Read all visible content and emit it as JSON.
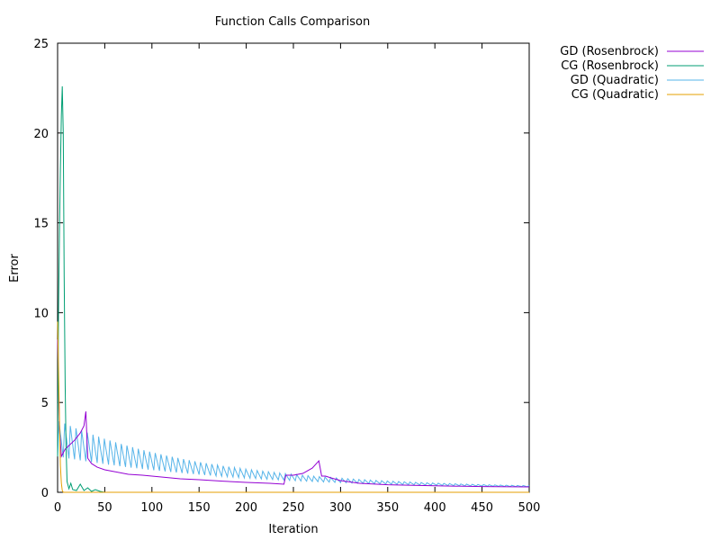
{
  "chart_data": {
    "type": "line",
    "title": "Function Calls Comparison",
    "xlabel": "Iteration",
    "ylabel": "Error",
    "xlim": [
      0,
      500
    ],
    "ylim": [
      0,
      25
    ],
    "xticks": [
      0,
      50,
      100,
      150,
      200,
      250,
      300,
      350,
      400,
      450,
      500
    ],
    "yticks": [
      0,
      5,
      10,
      15,
      20,
      25
    ],
    "grid": false,
    "legend_position": "outside-top-right",
    "series": [
      {
        "name": "GD (Rosenbrock)",
        "color": "#9400d3",
        "x": [
          0,
          2,
          4,
          8,
          12,
          18,
          24,
          28,
          30,
          32,
          36,
          42,
          50,
          60,
          75,
          90,
          110,
          130,
          150,
          175,
          200,
          225,
          240,
          242,
          250,
          260,
          270,
          277,
          280,
          284,
          290,
          300,
          320,
          350,
          400,
          450,
          500
        ],
        "y": [
          8.5,
          3.5,
          2.0,
          2.4,
          2.6,
          2.9,
          3.3,
          3.7,
          4.5,
          1.9,
          1.6,
          1.4,
          1.25,
          1.15,
          1.0,
          0.95,
          0.85,
          0.75,
          0.7,
          0.62,
          0.55,
          0.5,
          0.45,
          0.95,
          0.95,
          1.05,
          1.35,
          1.75,
          0.9,
          0.9,
          0.8,
          0.65,
          0.5,
          0.42,
          0.36,
          0.32,
          0.3
        ]
      },
      {
        "name": "CG (Rosenbrock)",
        "color": "#009e73",
        "x": [
          0,
          1,
          2,
          3,
          4,
          5,
          6,
          7,
          8,
          9,
          10,
          12,
          14,
          16,
          20,
          24,
          28,
          32,
          36,
          40,
          45,
          50,
          500
        ],
        "y": [
          2.0,
          10.0,
          14.5,
          18.0,
          21.0,
          22.6,
          20.0,
          12.0,
          6.0,
          2.5,
          0.6,
          0.2,
          0.5,
          0.15,
          0.1,
          0.45,
          0.1,
          0.25,
          0.05,
          0.15,
          0.05,
          0.0,
          0.0
        ]
      },
      {
        "name": "GD (Quadratic)",
        "color": "#56b4e9",
        "x": [
          0,
          500
        ],
        "y": [
          3.0,
          0.2
        ],
        "oscillation_amplitude_start": 2.0,
        "oscillation_period": 6
      },
      {
        "name": "CG (Quadratic)",
        "color": "#e69f00",
        "x": [
          0,
          1,
          2,
          3,
          4,
          5,
          6,
          500
        ],
        "y": [
          9.5,
          7.0,
          4.0,
          1.5,
          0.5,
          0.1,
          0.0,
          0.0
        ]
      }
    ]
  }
}
